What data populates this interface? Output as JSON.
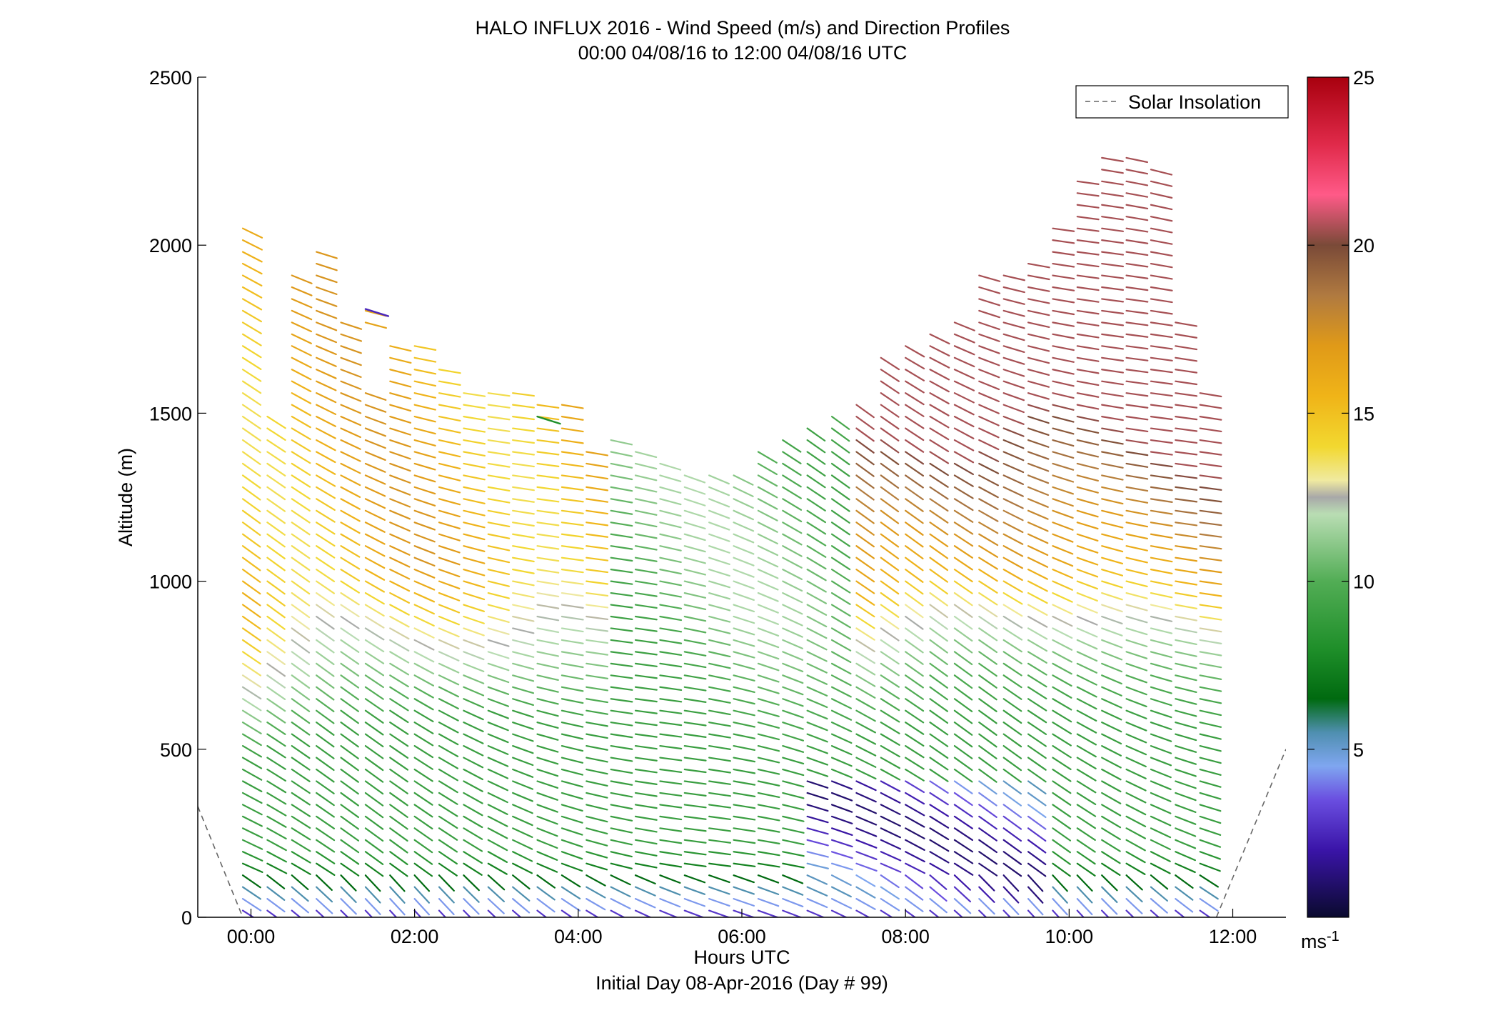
{
  "chart_data": {
    "type": "scatter",
    "title": "HALO INFLUX 2016 - Wind Speed (m/s) and Direction Profiles",
    "subtitle": "00:00 04/08/16 to 12:00 04/08/16  UTC",
    "xlabel": "Hours UTC",
    "xlabel2": "Initial Day 08-Apr-2016 (Day # 99)",
    "ylabel": "Altitude (m)",
    "xlim": [
      -0.65,
      12.65
    ],
    "ylim": [
      0,
      2500
    ],
    "xticks": [
      0,
      2,
      4,
      6,
      8,
      10,
      12
    ],
    "xtick_labels": [
      "00:00",
      "02:00",
      "04:00",
      "06:00",
      "08:00",
      "10:00",
      "12:00"
    ],
    "yticks": [
      0,
      500,
      1000,
      1500,
      2000,
      2500
    ],
    "ytick_labels": [
      "0",
      "500",
      "1000",
      "1500",
      "2000",
      "2500"
    ],
    "legend": {
      "position": "top-right",
      "entries": [
        "Solar Insolation"
      ]
    },
    "colorbar": {
      "range": [
        0,
        25
      ],
      "ticks": [
        5,
        10,
        15,
        20,
        25
      ],
      "tick_labels": [
        "5",
        "10",
        "15",
        "20",
        "25"
      ],
      "unit_label": "ms",
      "unit_exponent": "-1",
      "colormap": [
        {
          "v": 0,
          "c": "#0a0a2e"
        },
        {
          "v": 2,
          "c": "#3a14a8"
        },
        {
          "v": 3.5,
          "c": "#6a4ee0"
        },
        {
          "v": 4.5,
          "c": "#7fa6f0"
        },
        {
          "v": 5.5,
          "c": "#4f8fb0"
        },
        {
          "v": 6.5,
          "c": "#006a10"
        },
        {
          "v": 8,
          "c": "#1f8f2a"
        },
        {
          "v": 10,
          "c": "#52ad55"
        },
        {
          "v": 12,
          "c": "#b9ddb3"
        },
        {
          "v": 12.5,
          "c": "#a8a8a8"
        },
        {
          "v": 13,
          "c": "#f0eaa0"
        },
        {
          "v": 14,
          "c": "#f2d830"
        },
        {
          "v": 15.5,
          "c": "#f0b418"
        },
        {
          "v": 17,
          "c": "#e09a18"
        },
        {
          "v": 18.5,
          "c": "#b07a40"
        },
        {
          "v": 20,
          "c": "#7a4a38"
        },
        {
          "v": 21.5,
          "c": "#ff5a88"
        },
        {
          "v": 23,
          "c": "#e02a4a"
        },
        {
          "v": 25,
          "c": "#a8000e"
        }
      ]
    },
    "solar_insolation": {
      "style": "dashed",
      "color": "#666666",
      "segments": [
        [
          [
            -0.65,
            330
          ],
          [
            -0.1,
            0
          ]
        ],
        [
          [
            11.8,
            0
          ],
          [
            12.65,
            500
          ]
        ]
      ]
    },
    "profile_times": [
      -0.1,
      0.2,
      0.5,
      0.8,
      1.1,
      1.4,
      1.7,
      2.0,
      2.3,
      2.6,
      2.9,
      3.2,
      3.5,
      3.8,
      4.1,
      4.4,
      4.7,
      5.0,
      5.3,
      5.6,
      5.9,
      6.2,
      6.5,
      6.8,
      7.1,
      7.4,
      7.7,
      8.0,
      8.3,
      8.6,
      8.9,
      9.2,
      9.5,
      9.8,
      10.1,
      10.4,
      10.7,
      11.0,
      11.3,
      11.6
    ],
    "profile_tops": [
      2070,
      1520,
      1930,
      1980,
      1770,
      1830,
      1720,
      1700,
      1650,
      1570,
      1570,
      1560,
      1550,
      1530,
      1400,
      1420,
      1400,
      1370,
      1340,
      1320,
      1340,
      1400,
      1420,
      1470,
      1490,
      1530,
      1690,
      1730,
      1760,
      1800,
      1930,
      1930,
      1970,
      2050,
      2190,
      2290,
      2270,
      2250,
      1800,
      1580
    ],
    "profile_extra_top_runs": [
      {
        "t": 0.5,
        "from": 1400,
        "to": 1520
      },
      {
        "t": 10.1,
        "from": 2050,
        "to": 2190
      },
      {
        "t": 10.4,
        "from": 2050,
        "to": 2290
      },
      {
        "t": 11.3,
        "from": 2170,
        "to": 2250
      },
      {
        "t": 11.6,
        "from": 2050,
        "to": 2190
      }
    ],
    "level_spacing_m": 35,
    "first_level_m": 20,
    "speed_profile_model": "speed increases with altitude: ~1-4 m/s near surface (purple), 5-10 m/s in lower boundary layer (blue-green), ~11-13 m/s (pale green/grey) transition, 14-18 m/s (yellow-orange) aloft early and 17-20 m/s (brown) aloft after 07:30 UTC",
    "direction_note": "barbs mostly point left-down to right (westerly to north-westerly flow); near-surface shafts tilt more steeply",
    "annotations": [
      {
        "t": 1.4,
        "alt": 1810,
        "speed": 2.5
      },
      {
        "t": 3.5,
        "alt": 1490,
        "speed": 8
      }
    ]
  }
}
